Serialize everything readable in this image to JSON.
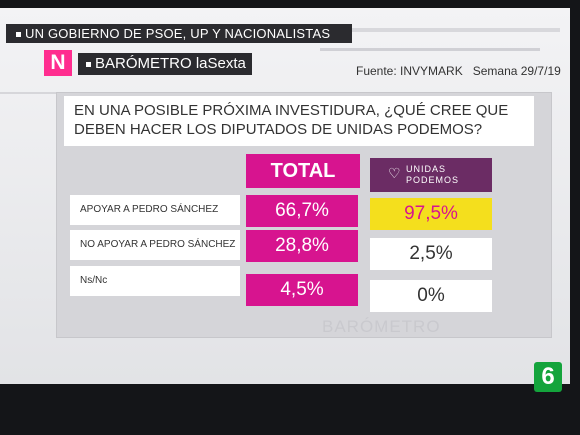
{
  "banner": {
    "text": "UN GOBIERNO DE PSOE, UP Y NACIONALISTAS"
  },
  "brand": {
    "logo": "N",
    "name": "BARÓMETRO laSexta"
  },
  "source": {
    "fuente": "Fuente:  INVYMARK",
    "semana": "Semana 29/7/19"
  },
  "question": {
    "line1": "EN UNA POSIBLE PRÓXIMA INVESTIDURA, ¿QUÉ CREE QUE",
    "line2": "DEBEN HACER LOS DIPUTADOS DE UNIDAS PODEMOS?"
  },
  "headers": {
    "total": "TOTAL",
    "party_line1": "UNIDAS",
    "party_line2": "PODEMOS"
  },
  "rows": [
    {
      "label": "APOYAR A PEDRO SÁNCHEZ",
      "total": "66,7%",
      "up": "97,5%"
    },
    {
      "label": "NO APOYAR A PEDRO SÁNCHEZ",
      "total": "28,8%",
      "up": "2,5%"
    },
    {
      "label": "Ns/Nc",
      "total": "4,5%",
      "up": "0%"
    }
  ],
  "watermark": "BARÓMETRO",
  "channel": "6",
  "colors": {
    "magenta": "#d7148f",
    "podemos_purple": "#6b2c64",
    "highlight_yellow": "#f4df1d",
    "channel_green": "#14a43c"
  }
}
